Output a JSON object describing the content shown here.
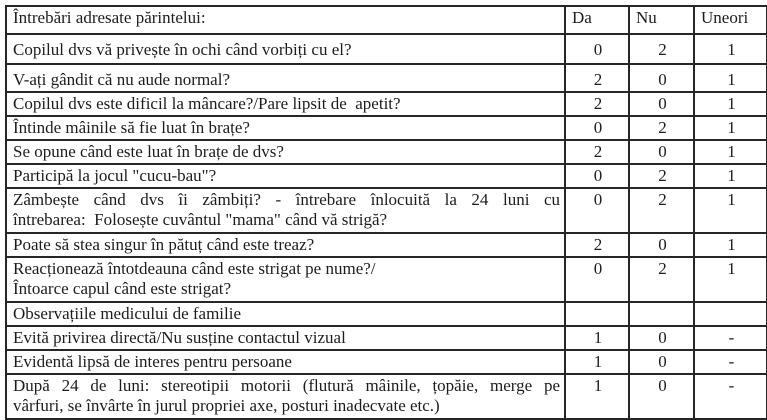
{
  "table": {
    "header": {
      "question": "Întrebări adresate părintelui:",
      "col_da": "Da",
      "col_nu": "Nu",
      "col_uneori": "Uneori"
    },
    "rows": [
      {
        "question": "Copilul dvs vă privește în ochi când vorbiți cu el?",
        "da": "0",
        "nu": "2",
        "uneori": "1"
      },
      {
        "question": "V-ați gândit că nu aude normal?",
        "da": "2",
        "nu": "0",
        "uneori": "1"
      },
      {
        "question": "Copilul dvs este dificil la mâncare?/Pare lipsit de  apetit?",
        "da": "2",
        "nu": "0",
        "uneori": "1"
      },
      {
        "question": "Întinde mâinile să fie luat în brațe?",
        "da": "0",
        "nu": "2",
        "uneori": "1"
      },
      {
        "question": "Se opune când este luat în brațe de dvs?",
        "da": "2",
        "nu": "0",
        "uneori": "1"
      },
      {
        "question": "Participă la jocul \"cucu-bau\"?",
        "da": "0",
        "nu": "2",
        "uneori": "1"
      },
      {
        "question": "Zâmbește când dvs îi zâmbiți? - întrebare înlocuită la 24 luni cu",
        "question_line2": "întrebarea:  Folosește cuvântul \"mama\" când vă strigă?",
        "da": "0",
        "nu": "2",
        "uneori": "1"
      },
      {
        "question": "Poate să stea singur în pătuț când este treaz?",
        "da": "2",
        "nu": "0",
        "uneori": "1"
      },
      {
        "question": "Reacționează întotdeauna când este strigat pe nume?/",
        "question_line2": "Întoarce capul când este strigat?",
        "da": "0",
        "nu": "2",
        "uneori": "1"
      },
      {
        "question": "Observațiile medicului de familie",
        "da": "",
        "nu": "",
        "uneori": ""
      },
      {
        "question": "Evită privirea directă/Nu susține contactul vizual",
        "da": "1",
        "nu": "0",
        "uneori": "-"
      },
      {
        "question": "Evidentă lipsă de interes pentru persoane",
        "da": "1",
        "nu": "0",
        "uneori": "-"
      },
      {
        "question": "După 24 de luni: stereotipii motorii (flutură mâinile, țopăie, merge pe",
        "question_line2": "vârfuri, se învârte în jurul propriei axe, posturi inadecvate etc.)",
        "da": "1",
        "nu": "0",
        "uneori": "-"
      }
    ]
  }
}
